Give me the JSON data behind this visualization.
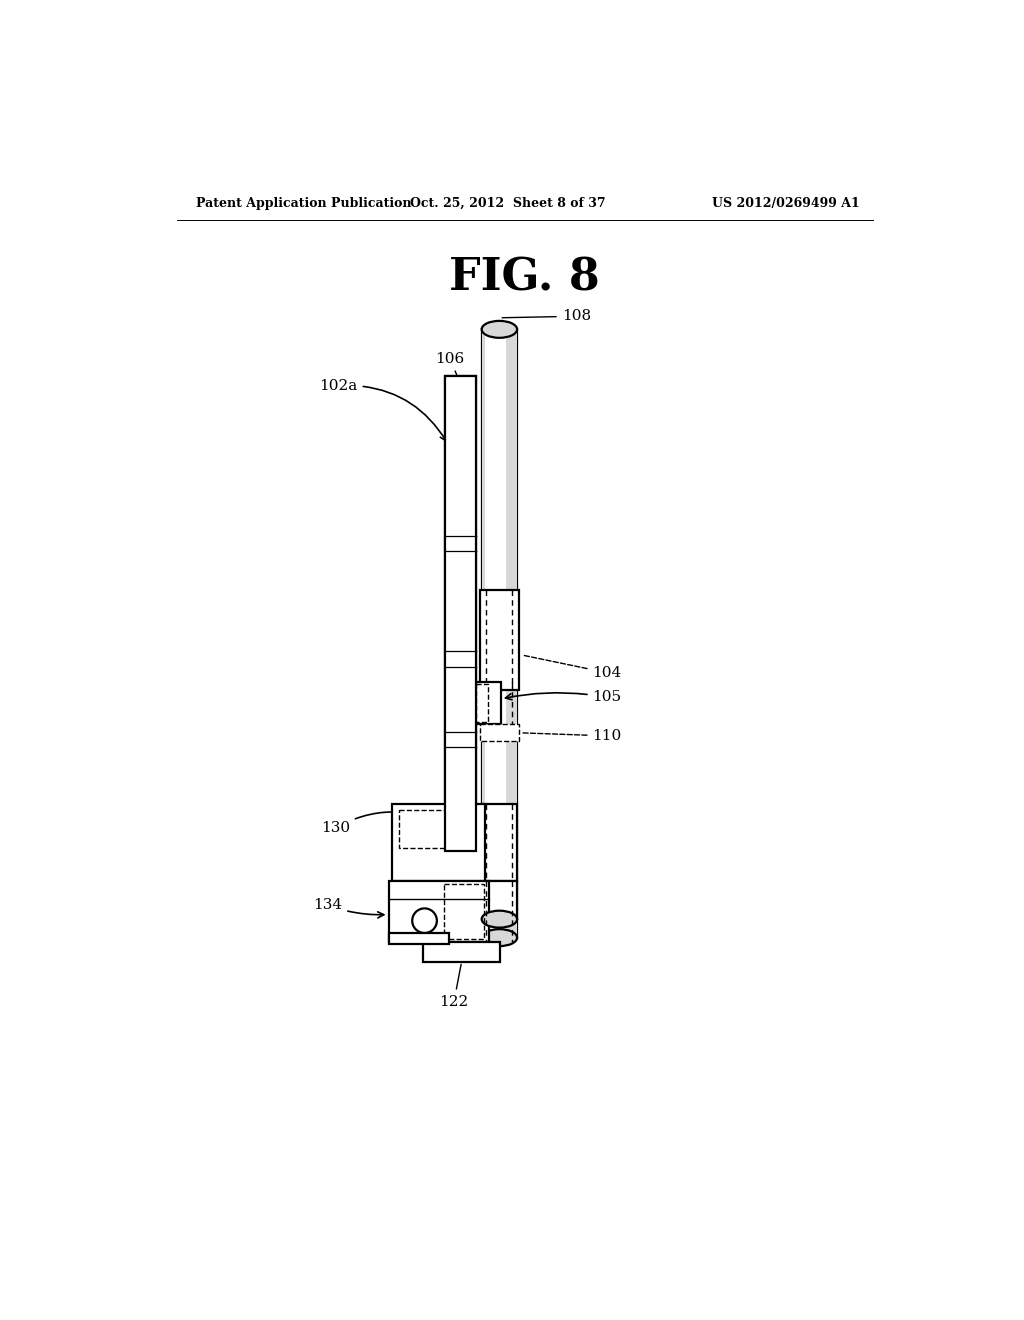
{
  "title": "FIG. 8",
  "header_left": "Patent Application Publication",
  "header_center": "Oct. 25, 2012  Sheet 8 of 37",
  "header_right": "US 2012/0269499 A1",
  "bg": "#ffffff",
  "fg": "#000000",
  "lw": 1.6,
  "fig_w": 10.24,
  "fig_h": 13.2,
  "dpi": 100
}
